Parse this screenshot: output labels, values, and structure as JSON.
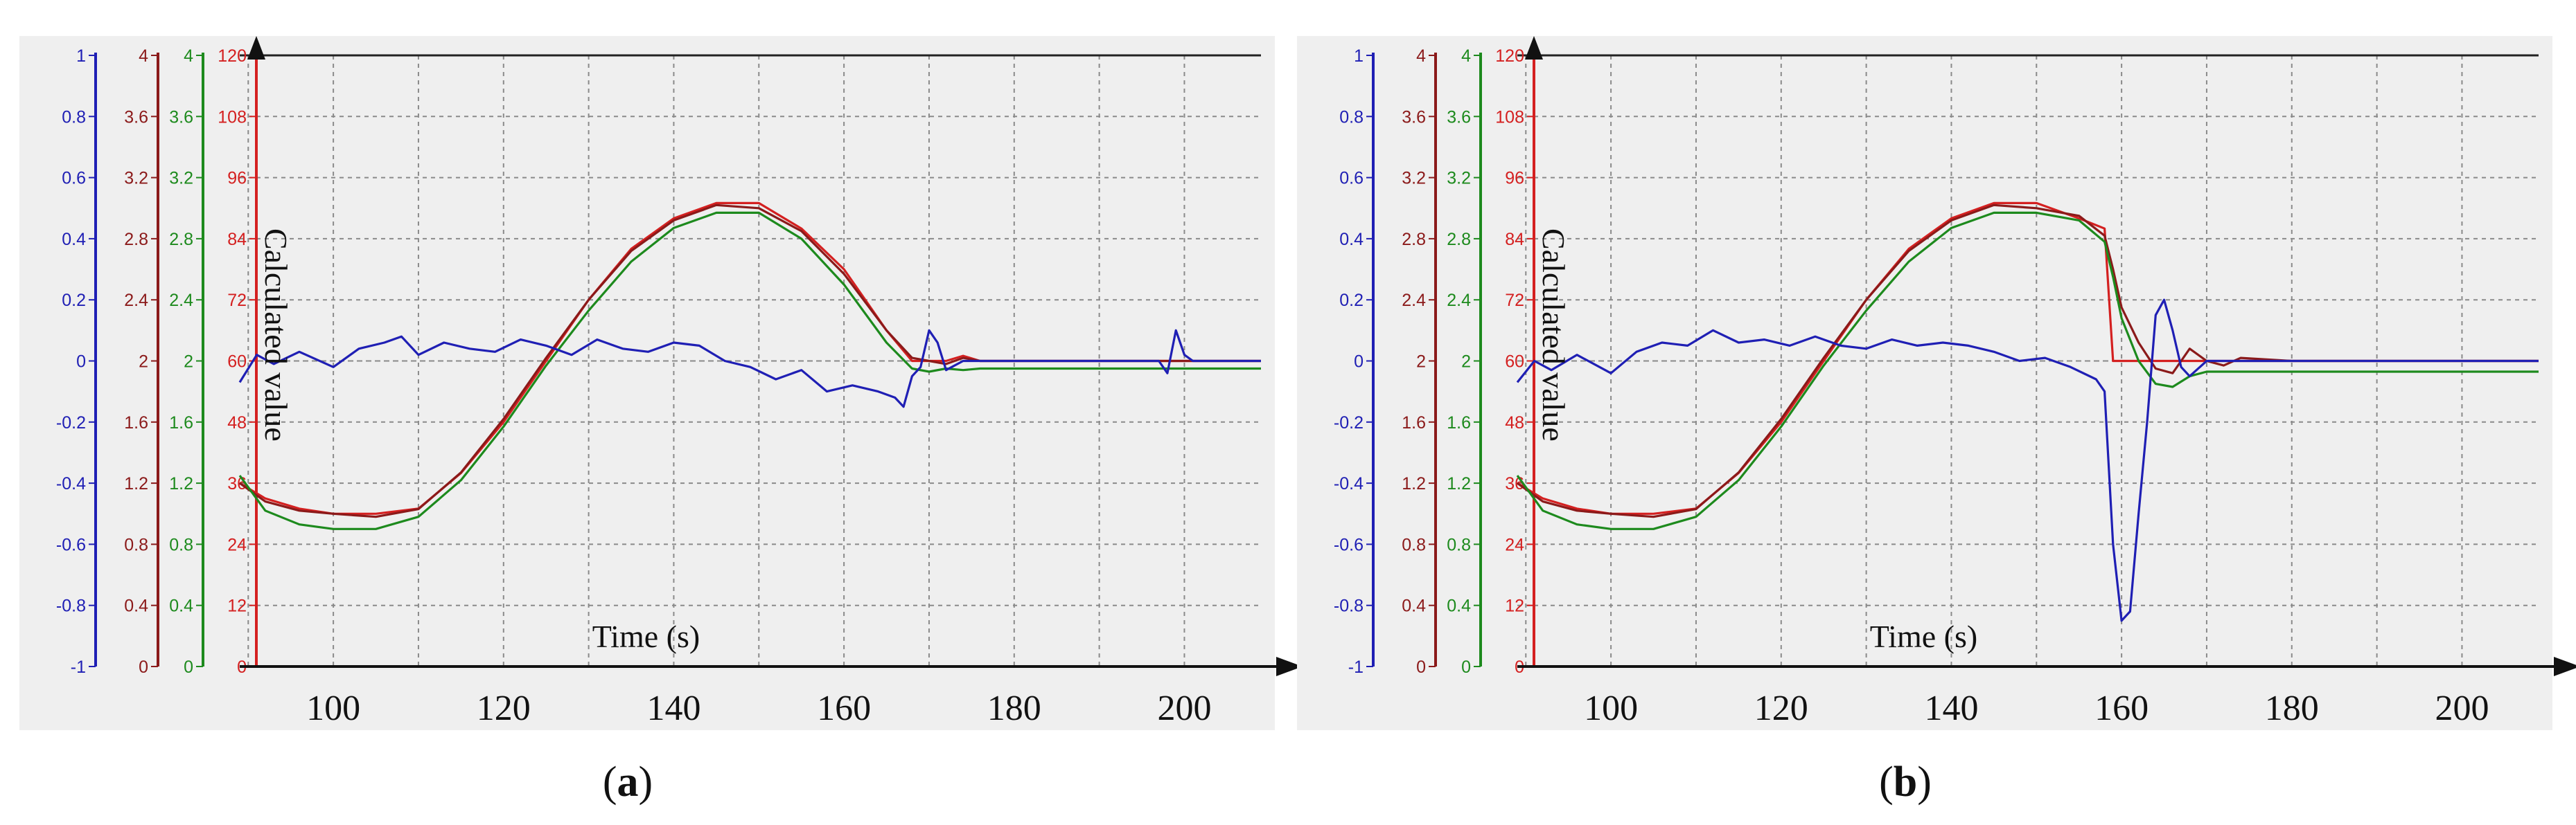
{
  "chart_data": [
    {
      "type": "line",
      "panel_label": "(a)",
      "panel_letter": "a",
      "xlabel": "Time (s)",
      "ylabel": "Calculated value",
      "xlim": [
        89,
        209
      ],
      "x_ticks": [
        100,
        120,
        140,
        160,
        180,
        200
      ],
      "grid": true,
      "y_axes": [
        {
          "color": "#1f1fb4",
          "lim": [
            -1,
            1
          ],
          "ticks": [
            "-1",
            "-0.8",
            "-0.6",
            "-0.4",
            "-0.2",
            "0",
            "0.2",
            "0.4",
            "0.6",
            "0.8",
            "1"
          ],
          "tick_values": [
            -1,
            -0.8,
            -0.6,
            -0.4,
            -0.2,
            0,
            0.2,
            0.4,
            0.6,
            0.8,
            1
          ]
        },
        {
          "color": "#8b1a1a",
          "lim": [
            0,
            4
          ],
          "ticks": [
            "0",
            "0.4",
            "0.8",
            "1.2",
            "1.6",
            "2",
            "2.4",
            "2.8",
            "3.2",
            "3.6",
            "4"
          ]
        },
        {
          "color": "#1d8a1d",
          "lim": [
            0,
            4
          ],
          "ticks": [
            "0",
            "0.4",
            "0.8",
            "1.2",
            "1.6",
            "2",
            "2.4",
            "2.8",
            "3.2",
            "3.6",
            "4"
          ]
        },
        {
          "color": "#d42020",
          "lim": [
            0,
            120
          ],
          "ticks": [
            "0",
            "12",
            "24",
            "36",
            "48",
            "60",
            "72",
            "84",
            "96",
            "108",
            "120"
          ]
        }
      ],
      "series": [
        {
          "color": "#d42020",
          "axis": 3,
          "x": [
            89,
            92,
            96,
            100,
            105,
            110,
            115,
            120,
            125,
            130,
            135,
            140,
            145,
            150,
            155,
            160,
            165,
            168,
            170,
            172,
            174,
            176,
            180,
            190,
            200,
            209
          ],
          "y": [
            36,
            33,
            31,
            30,
            30,
            31,
            38,
            48,
            60,
            72,
            82,
            88,
            91,
            91,
            86,
            78,
            66,
            60,
            60,
            60,
            61,
            60,
            60,
            60,
            60,
            60
          ]
        },
        {
          "color": "#8b1a1a",
          "axis": 1,
          "x": [
            89,
            92,
            96,
            100,
            105,
            110,
            115,
            120,
            125,
            130,
            135,
            140,
            145,
            150,
            155,
            160,
            165,
            168,
            170,
            172,
            174,
            176,
            180,
            190,
            200,
            209
          ],
          "y": [
            1.2,
            1.08,
            1.02,
            1.0,
            0.98,
            1.03,
            1.27,
            1.62,
            2.02,
            2.4,
            2.72,
            2.92,
            3.02,
            3.0,
            2.85,
            2.57,
            2.2,
            2.02,
            2.0,
            1.98,
            2.02,
            2.0,
            2.0,
            2.0,
            2.0,
            2.0
          ]
        },
        {
          "color": "#1d8a1d",
          "axis": 2,
          "x": [
            89,
            92,
            96,
            100,
            105,
            110,
            115,
            120,
            125,
            130,
            135,
            140,
            145,
            150,
            155,
            160,
            165,
            168,
            170,
            172,
            174,
            176,
            180,
            190,
            200,
            209
          ],
          "y": [
            1.25,
            1.02,
            0.93,
            0.9,
            0.9,
            0.98,
            1.22,
            1.57,
            1.97,
            2.33,
            2.65,
            2.87,
            2.97,
            2.97,
            2.8,
            2.5,
            2.12,
            1.95,
            1.93,
            1.95,
            1.94,
            1.95,
            1.95,
            1.95,
            1.95,
            1.95
          ]
        },
        {
          "color": "#1f1fb4",
          "axis": 0,
          "x": [
            89,
            91,
            93,
            96,
            100,
            103,
            106,
            108,
            110,
            113,
            116,
            119,
            122,
            125,
            128,
            131,
            134,
            137,
            140,
            143,
            146,
            149,
            152,
            155,
            158,
            161,
            164,
            166,
            167,
            168,
            169,
            170,
            171,
            172,
            174,
            176,
            180,
            190,
            197,
            198,
            199,
            200,
            201,
            209
          ],
          "y": [
            -0.07,
            0.02,
            -0.01,
            0.03,
            -0.02,
            0.04,
            0.06,
            0.08,
            0.02,
            0.06,
            0.04,
            0.03,
            0.07,
            0.05,
            0.02,
            0.07,
            0.04,
            0.03,
            0.06,
            0.05,
            0.0,
            -0.02,
            -0.06,
            -0.03,
            -0.1,
            -0.08,
            -0.1,
            -0.12,
            -0.15,
            -0.05,
            -0.02,
            0.1,
            0.06,
            -0.03,
            0.0,
            0.0,
            0.0,
            0.0,
            0.0,
            -0.04,
            0.1,
            0.02,
            0.0,
            0.0
          ]
        }
      ]
    },
    {
      "type": "line",
      "panel_label": "(b)",
      "panel_letter": "b",
      "xlabel": "Time (s)",
      "ylabel": "Calculated value",
      "xlim": [
        89,
        209
      ],
      "x_ticks": [
        100,
        120,
        140,
        160,
        180,
        200
      ],
      "grid": true,
      "y_axes": [
        {
          "color": "#1f1fb4",
          "lim": [
            -1,
            1
          ],
          "ticks": [
            "-1",
            "-0.8",
            "-0.6",
            "-0.4",
            "-0.2",
            "0",
            "0.2",
            "0.4",
            "0.6",
            "0.8",
            "1"
          ],
          "tick_values": [
            -1,
            -0.8,
            -0.6,
            -0.4,
            -0.2,
            0,
            0.2,
            0.4,
            0.6,
            0.8,
            1
          ]
        },
        {
          "color": "#8b1a1a",
          "lim": [
            0,
            4
          ],
          "ticks": [
            "0",
            "0.4",
            "0.8",
            "1.2",
            "1.6",
            "2",
            "2.4",
            "2.8",
            "3.2",
            "3.6",
            "4"
          ]
        },
        {
          "color": "#1d8a1d",
          "lim": [
            0,
            4
          ],
          "ticks": [
            "0",
            "0.4",
            "0.8",
            "1.2",
            "1.6",
            "2",
            "2.4",
            "2.8",
            "3.2",
            "3.6",
            "4"
          ]
        },
        {
          "color": "#d42020",
          "lim": [
            0,
            120
          ],
          "ticks": [
            "0",
            "12",
            "24",
            "36",
            "48",
            "60",
            "72",
            "84",
            "96",
            "108",
            "120"
          ]
        }
      ],
      "series": [
        {
          "color": "#d42020",
          "axis": 3,
          "x": [
            89,
            92,
            96,
            100,
            105,
            110,
            115,
            120,
            125,
            130,
            135,
            140,
            145,
            150,
            155,
            158,
            159,
            160,
            162,
            165,
            170,
            174,
            180,
            190,
            200,
            209
          ],
          "y": [
            36,
            33,
            31,
            30,
            30,
            31,
            38,
            48,
            60,
            72,
            82,
            88,
            91,
            91,
            88,
            86,
            60,
            60,
            60,
            60,
            60,
            60,
            60,
            60,
            60,
            60
          ]
        },
        {
          "color": "#8b1a1a",
          "axis": 1,
          "x": [
            89,
            92,
            96,
            100,
            105,
            110,
            115,
            120,
            125,
            130,
            135,
            140,
            145,
            150,
            155,
            158,
            159,
            160,
            162,
            164,
            166,
            168,
            170,
            172,
            174,
            180,
            190,
            200,
            209
          ],
          "y": [
            1.2,
            1.08,
            1.02,
            1.0,
            0.98,
            1.03,
            1.27,
            1.62,
            2.02,
            2.4,
            2.72,
            2.92,
            3.02,
            3.0,
            2.95,
            2.82,
            2.6,
            2.35,
            2.12,
            1.95,
            1.92,
            2.08,
            2.0,
            1.97,
            2.02,
            2.0,
            2.0,
            2.0,
            2.0
          ]
        },
        {
          "color": "#1d8a1d",
          "axis": 2,
          "x": [
            89,
            92,
            96,
            100,
            105,
            110,
            115,
            120,
            125,
            130,
            135,
            140,
            145,
            150,
            155,
            158,
            159,
            160,
            162,
            164,
            166,
            168,
            170,
            172,
            174,
            180,
            190,
            200,
            209
          ],
          "y": [
            1.25,
            1.02,
            0.93,
            0.9,
            0.9,
            0.98,
            1.22,
            1.57,
            1.97,
            2.33,
            2.65,
            2.87,
            2.97,
            2.97,
            2.92,
            2.78,
            2.55,
            2.28,
            2.0,
            1.85,
            1.83,
            1.9,
            1.93,
            1.93,
            1.93,
            1.93,
            1.93,
            1.93,
            1.93
          ]
        },
        {
          "color": "#1f1fb4",
          "axis": 0,
          "x": [
            89,
            91,
            93,
            96,
            100,
            103,
            106,
            109,
            112,
            115,
            118,
            121,
            124,
            127,
            130,
            133,
            136,
            139,
            142,
            145,
            148,
            151,
            154,
            157,
            158,
            159,
            160,
            161,
            162,
            163,
            164,
            165,
            166,
            167,
            168,
            170,
            172,
            174,
            180,
            190,
            200,
            209
          ],
          "y": [
            -0.07,
            0.0,
            -0.03,
            0.02,
            -0.04,
            0.03,
            0.06,
            0.05,
            0.1,
            0.06,
            0.07,
            0.05,
            0.08,
            0.05,
            0.04,
            0.07,
            0.05,
            0.06,
            0.05,
            0.03,
            0.0,
            0.01,
            -0.02,
            -0.06,
            -0.1,
            -0.6,
            -0.85,
            -0.82,
            -0.5,
            -0.2,
            0.15,
            0.2,
            0.1,
            -0.02,
            -0.05,
            0.0,
            0.0,
            0.0,
            0.0,
            0.0,
            0.0,
            0.0
          ]
        }
      ]
    }
  ]
}
